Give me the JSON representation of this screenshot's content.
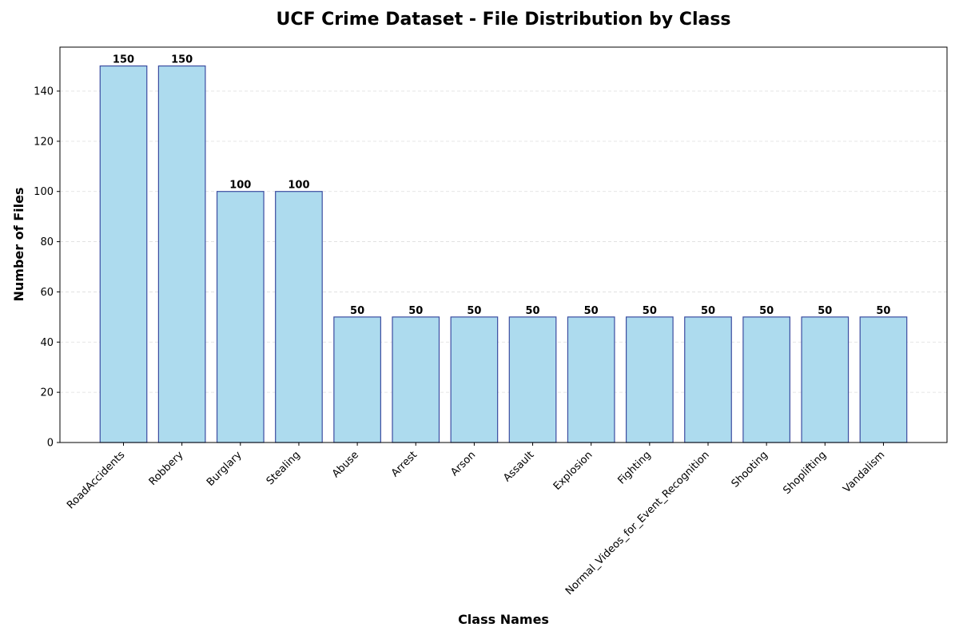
{
  "chart_data": {
    "type": "bar",
    "title": "UCF Crime Dataset - File Distribution by Class",
    "xlabel": "Class Names",
    "ylabel": "Number of Files",
    "categories": [
      "RoadAccidents",
      "Robbery",
      "Burglary",
      "Stealing",
      "Abuse",
      "Arrest",
      "Arson",
      "Assault",
      "Explosion",
      "Fighting",
      "Normal_Videos_for_Event_Recognition",
      "Shooting",
      "Shoplifting",
      "Vandalism"
    ],
    "values": [
      150,
      150,
      100,
      100,
      50,
      50,
      50,
      50,
      50,
      50,
      50,
      50,
      50,
      50
    ],
    "data_labels": [
      "150",
      "150",
      "100",
      "100",
      "50",
      "50",
      "50",
      "50",
      "50",
      "50",
      "50",
      "50",
      "50",
      "50"
    ],
    "ylim": [
      0,
      157.5
    ],
    "yticks": [
      0,
      20,
      40,
      60,
      80,
      100,
      120,
      140
    ],
    "ytick_labels": [
      "0",
      "20",
      "40",
      "60",
      "80",
      "100",
      "120",
      "140"
    ],
    "grid": "y-dashed",
    "bar_color": "#ADDBEE",
    "bar_edge_color": "#3B4CA0",
    "grid_color": "#dddddd"
  }
}
